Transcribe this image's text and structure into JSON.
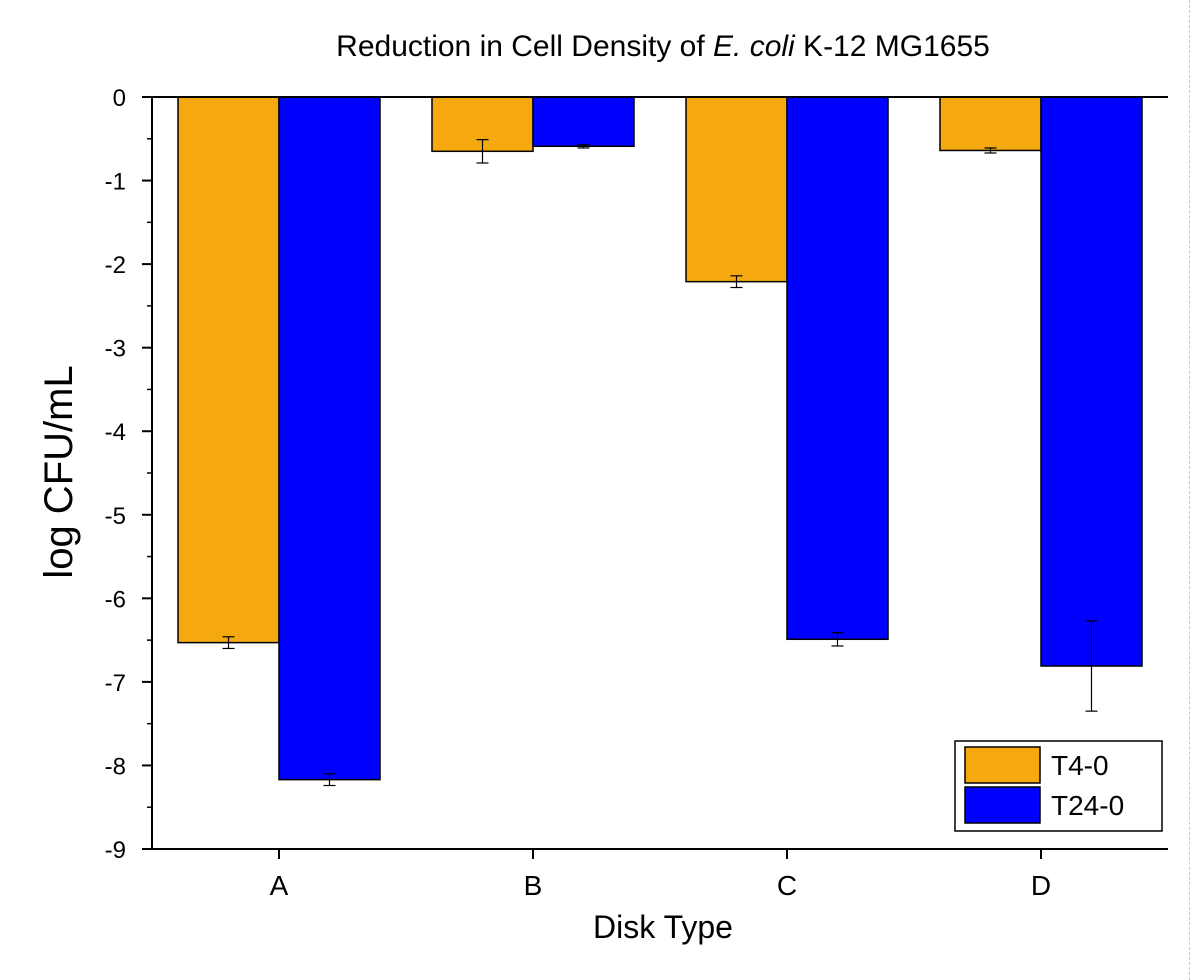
{
  "chart_data": {
    "type": "bar",
    "title": "Reduction in Cell Density of E. coli K-12 MG1655",
    "title_parts": {
      "pre": "Reduction in Cell Density of ",
      "italic": "E. coli",
      "post": " K-12 MG1655"
    },
    "xlabel": "Disk Type",
    "ylabel": "log CFU/mL",
    "categories": [
      "A",
      "B",
      "C",
      "D"
    ],
    "ylim": [
      -9,
      0
    ],
    "yticks": [
      0,
      -1,
      -2,
      -3,
      -4,
      -5,
      -6,
      -7,
      -8,
      -9
    ],
    "series": [
      {
        "name": "T4-0",
        "color": "#F5A90F",
        "values": [
          -6.53,
          -0.65,
          -2.21,
          -0.64
        ],
        "errors": [
          0.07,
          0.14,
          0.07,
          0.03
        ]
      },
      {
        "name": "T24-0",
        "color": "#0000FF",
        "values": [
          -8.17,
          -0.59,
          -6.49,
          -6.81
        ],
        "errors": [
          0.07,
          0.02,
          0.08,
          0.54
        ]
      }
    ],
    "legend_position": "bottom-right",
    "grid": false
  }
}
